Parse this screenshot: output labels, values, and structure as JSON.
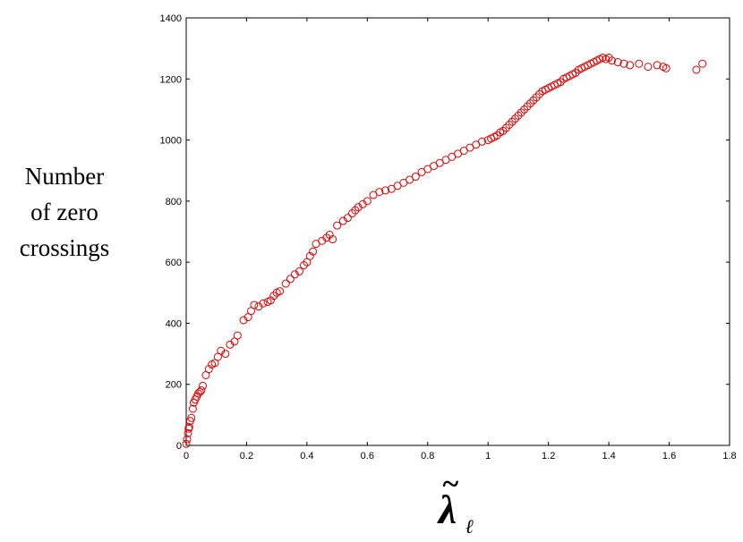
{
  "chart_data": {
    "type": "scatter",
    "xlabel": "λ̃ℓ",
    "xlabel_symbol": "λ",
    "xlabel_accent": "~",
    "xlabel_subscript": "ℓ",
    "ylabel_lines": [
      "Number",
      "of zero",
      "crossings"
    ],
    "xlim": [
      0,
      1.8
    ],
    "ylim": [
      0,
      1400
    ],
    "xticks": [
      "0",
      "0.2",
      "0.4",
      "0.6",
      "0.8",
      "1",
      "1.2",
      "1.4",
      "1.6",
      "1.8"
    ],
    "yticks": [
      "0",
      "200",
      "400",
      "600",
      "800",
      "1000",
      "1200",
      "1400"
    ],
    "marker": "open-circle",
    "marker_color": "#e00000",
    "grid": false,
    "legend": "none",
    "series": [
      {
        "x": [
          0.0,
          0.003,
          0.006,
          0.008,
          0.01,
          0.013,
          0.017,
          0.022,
          0.025,
          0.03,
          0.035,
          0.04,
          0.045,
          0.05,
          0.055,
          0.065,
          0.075,
          0.085,
          0.095,
          0.105,
          0.115,
          0.13,
          0.145,
          0.16,
          0.17,
          0.19,
          0.205,
          0.215,
          0.225,
          0.24,
          0.255,
          0.27,
          0.28,
          0.29,
          0.3,
          0.31,
          0.33,
          0.345,
          0.36,
          0.375,
          0.39,
          0.4,
          0.41,
          0.42,
          0.43,
          0.45,
          0.465,
          0.475,
          0.485,
          0.5,
          0.52,
          0.535,
          0.55,
          0.56,
          0.57,
          0.585,
          0.6,
          0.62,
          0.64,
          0.66,
          0.68,
          0.7,
          0.72,
          0.74,
          0.76,
          0.78,
          0.8,
          0.82,
          0.84,
          0.86,
          0.88,
          0.9,
          0.92,
          0.94,
          0.96,
          0.98,
          1.0,
          1.01,
          1.02,
          1.03,
          1.04,
          1.05,
          1.06,
          1.07,
          1.08,
          1.09,
          1.1,
          1.11,
          1.12,
          1.13,
          1.14,
          1.15,
          1.16,
          1.17,
          1.18,
          1.19,
          1.2,
          1.21,
          1.22,
          1.23,
          1.24,
          1.25,
          1.26,
          1.27,
          1.28,
          1.29,
          1.3,
          1.31,
          1.32,
          1.33,
          1.34,
          1.35,
          1.36,
          1.37,
          1.38,
          1.39,
          1.4,
          1.41,
          1.43,
          1.45,
          1.47,
          1.5,
          1.53,
          1.56,
          1.58,
          1.59,
          1.69,
          1.71
        ],
        "y": [
          5,
          20,
          40,
          55,
          60,
          80,
          90,
          120,
          140,
          150,
          160,
          170,
          175,
          180,
          195,
          230,
          250,
          265,
          270,
          290,
          310,
          300,
          330,
          340,
          360,
          410,
          420,
          440,
          460,
          455,
          465,
          470,
          475,
          490,
          500,
          505,
          530,
          545,
          560,
          570,
          590,
          600,
          620,
          635,
          660,
          670,
          680,
          690,
          675,
          720,
          735,
          745,
          760,
          770,
          780,
          790,
          800,
          820,
          830,
          835,
          840,
          850,
          860,
          870,
          880,
          895,
          905,
          915,
          925,
          935,
          945,
          955,
          965,
          975,
          985,
          995,
          1000,
          1005,
          1010,
          1015,
          1025,
          1030,
          1040,
          1050,
          1060,
          1070,
          1080,
          1090,
          1100,
          1110,
          1120,
          1130,
          1140,
          1150,
          1160,
          1165,
          1170,
          1175,
          1180,
          1185,
          1190,
          1200,
          1205,
          1210,
          1215,
          1220,
          1230,
          1235,
          1240,
          1245,
          1250,
          1255,
          1260,
          1265,
          1270,
          1265,
          1270,
          1260,
          1255,
          1250,
          1245,
          1250,
          1240,
          1245,
          1240,
          1235,
          1230,
          1250
        ]
      }
    ]
  }
}
